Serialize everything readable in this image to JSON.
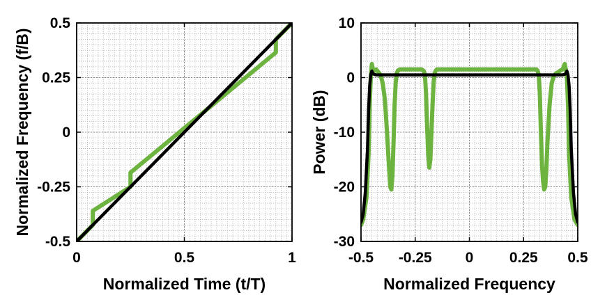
{
  "chart_data": [
    {
      "type": "line",
      "xlabel": "Normalized Time (t/T)",
      "ylabel": "Normalized Frequency (f/B)",
      "xlim": [
        0,
        1
      ],
      "ylim": [
        -0.5,
        0.5
      ],
      "xticks": [
        0,
        0.5,
        1
      ],
      "xtick_labels": [
        "0",
        "0.5",
        "1"
      ],
      "yticks": [
        -0.5,
        -0.25,
        0,
        0.25,
        0.5
      ],
      "ytick_labels": [
        "-0.5",
        "-0.25",
        "0",
        "0.25",
        "0.5"
      ],
      "grid": true,
      "series": [
        {
          "color": "#6db33f",
          "x": [
            0.0,
            0.075,
            0.075,
            0.25,
            0.25,
            0.925,
            0.925,
            1.0
          ],
          "y": [
            -0.5,
            -0.425,
            -0.36,
            -0.25,
            -0.185,
            0.365,
            0.425,
            0.5
          ]
        },
        {
          "color": "#000000",
          "x": [
            0,
            1
          ],
          "y": [
            -0.5,
            0.5
          ]
        }
      ]
    },
    {
      "type": "line",
      "xlabel": "Normalized Frequency",
      "ylabel": "Power (dB)",
      "xlim": [
        -0.5,
        0.5
      ],
      "ylim": [
        -30,
        10
      ],
      "xticks": [
        -0.5,
        -0.25,
        0,
        0.25,
        0.5
      ],
      "xtick_labels": [
        "-0.5",
        "-0.25",
        "0",
        "0.25",
        "0.5"
      ],
      "yticks": [
        -30,
        -20,
        -10,
        0,
        10
      ],
      "ytick_labels": [
        "-30",
        "-20",
        "-10",
        "0",
        "10"
      ],
      "grid": true,
      "series": [
        {
          "color": "#6db33f",
          "x": [
            -0.5,
            -0.49,
            -0.475,
            -0.465,
            -0.46,
            -0.455,
            -0.45,
            -0.445,
            -0.44,
            -0.43,
            -0.42,
            -0.41,
            -0.4,
            -0.39,
            -0.38,
            -0.37,
            -0.365,
            -0.36,
            -0.355,
            -0.35,
            -0.345,
            -0.34,
            -0.335,
            -0.33,
            -0.32,
            -0.28,
            -0.24,
            -0.22,
            -0.21,
            -0.205,
            -0.2,
            -0.195,
            -0.19,
            -0.185,
            -0.18,
            -0.175,
            -0.17,
            -0.165,
            -0.16,
            -0.155,
            -0.15,
            0.0,
            0.2,
            0.3,
            0.31,
            0.315,
            0.32,
            0.325,
            0.33,
            0.335,
            0.34,
            0.345,
            0.35,
            0.355,
            0.36,
            0.37,
            0.38,
            0.39,
            0.4,
            0.41,
            0.42,
            0.43,
            0.44,
            0.445,
            0.45,
            0.455,
            0.46,
            0.47,
            0.485,
            0.5
          ],
          "y": [
            -27,
            -26,
            -22,
            -14,
            -5,
            0,
            2.5,
            1.5,
            1.2,
            1.5,
            1,
            0.5,
            -1,
            -4,
            -10,
            -17,
            -20,
            -20.5,
            -18,
            -12,
            -5,
            -1,
            0.8,
            1.3,
            1.5,
            1.5,
            1.5,
            1.5,
            1.2,
            0.5,
            -3,
            -9,
            -14,
            -16.5,
            -15,
            -10,
            -5,
            -1,
            0.8,
            1.3,
            1.5,
            1.5,
            1.5,
            1.5,
            1.5,
            1.2,
            0.5,
            -3,
            -10,
            -16,
            -19,
            -20.5,
            -20,
            -17,
            -12,
            -5,
            -1,
            0.3,
            0.8,
            1,
            1.3,
            1.5,
            2.5,
            1.5,
            0,
            -5,
            -14,
            -22,
            -26,
            -27
          ]
        },
        {
          "color": "#000000",
          "x": [
            -0.5,
            -0.49,
            -0.48,
            -0.47,
            -0.465,
            -0.46,
            -0.455,
            -0.45,
            -0.445,
            -0.44,
            -0.43,
            -0.4,
            0.0,
            0.4,
            0.43,
            0.44,
            0.445,
            0.45,
            0.455,
            0.46,
            0.465,
            0.47,
            0.48,
            0.49,
            0.5
          ],
          "y": [
            -26.5,
            -25,
            -21,
            -13,
            -6,
            -1.5,
            0.5,
            1.2,
            0.7,
            0.6,
            0.5,
            0.5,
            0.5,
            0.5,
            0.5,
            0.6,
            0.7,
            1.2,
            0.5,
            -1.5,
            -6,
            -13,
            -21,
            -25,
            -26.5
          ]
        }
      ]
    }
  ]
}
